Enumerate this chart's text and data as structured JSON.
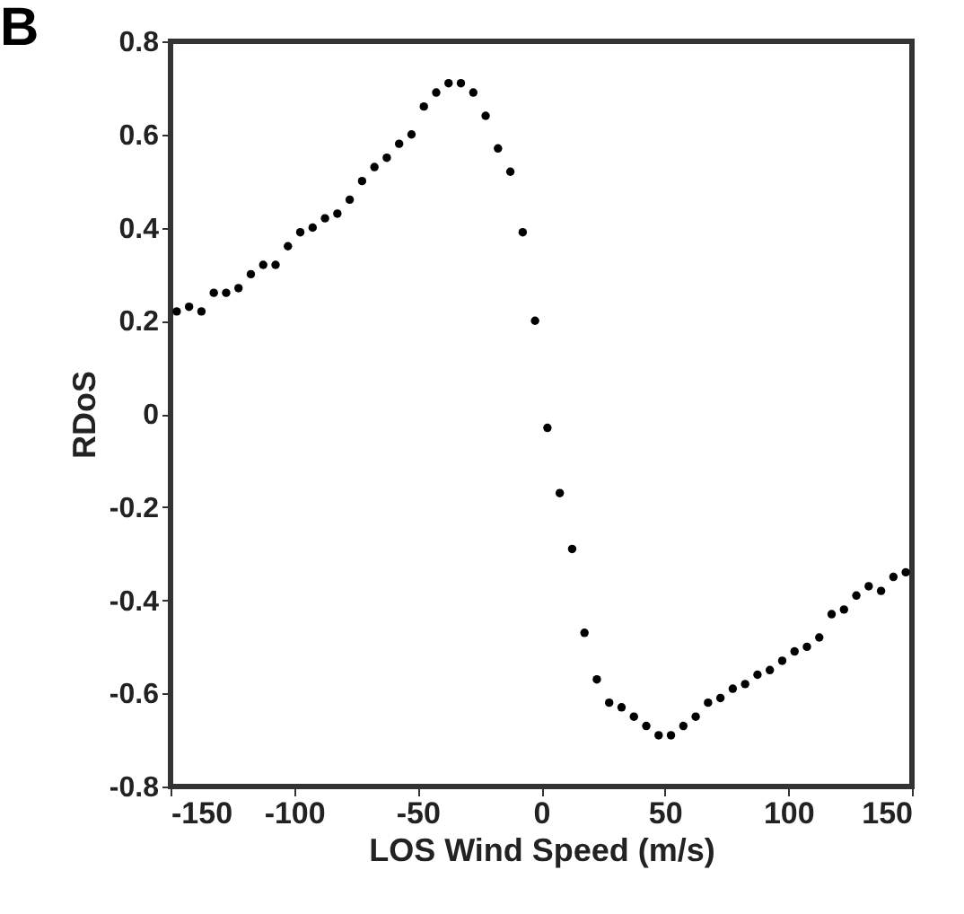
{
  "chart_data": {
    "type": "scatter",
    "xlabel": "LOS Wind Speed (m/s)",
    "ylabel": "RDoS",
    "annotations": [
      "B"
    ],
    "x": [
      -147.5,
      -142.5,
      -137.5,
      -132.5,
      -127.5,
      -122.5,
      -117.5,
      -112.5,
      -107.5,
      -102.5,
      -97.5,
      -92.5,
      -87.5,
      -82.5,
      -77.5,
      -72.5,
      -67.5,
      -62.5,
      -57.5,
      -52.5,
      -47.5,
      -42.5,
      -37.5,
      -32.5,
      -27.5,
      -22.5,
      -17.5,
      -12.5,
      -7.5,
      -2.5,
      2.5,
      7.5,
      12.5,
      17.5,
      22.5,
      27.5,
      32.5,
      37.5,
      42.5,
      47.5,
      52.5,
      57.5,
      62.5,
      67.5,
      72.5,
      77.5,
      82.5,
      87.5,
      92.5,
      97.5,
      102.5,
      107.5,
      112.5,
      117.5,
      122.5,
      127.5,
      132.5,
      137.5,
      142.5,
      147.5
    ],
    "series": [
      {
        "color": "#000000",
        "values": [
          0.22,
          0.23,
          0.22,
          0.26,
          0.26,
          0.27,
          0.3,
          0.32,
          0.32,
          0.36,
          0.39,
          0.4,
          0.42,
          0.43,
          0.46,
          0.5,
          0.53,
          0.55,
          0.58,
          0.6,
          0.66,
          0.69,
          0.71,
          0.71,
          0.69,
          0.64,
          0.57,
          0.52,
          0.39,
          0.2,
          -0.03,
          -0.17,
          -0.29,
          -0.47,
          -0.57,
          -0.62,
          -0.63,
          -0.65,
          -0.67,
          -0.69,
          -0.69,
          -0.67,
          -0.65,
          -0.62,
          -0.61,
          -0.59,
          -0.58,
          -0.56,
          -0.55,
          -0.53,
          -0.51,
          -0.5,
          -0.48,
          -0.43,
          -0.42,
          -0.39,
          -0.37,
          -0.38,
          -0.35,
          -0.34
        ]
      }
    ],
    "xlim": [
      -150,
      150
    ],
    "ylim": [
      -0.8,
      0.8
    ],
    "xticks": [
      -150,
      -100,
      -50,
      0,
      50,
      100,
      150
    ],
    "yticks": [
      -0.8,
      -0.6,
      -0.4,
      -0.2,
      0,
      0.2,
      0.4,
      0.6,
      0.8
    ],
    "grid": false,
    "marker": "circle"
  }
}
